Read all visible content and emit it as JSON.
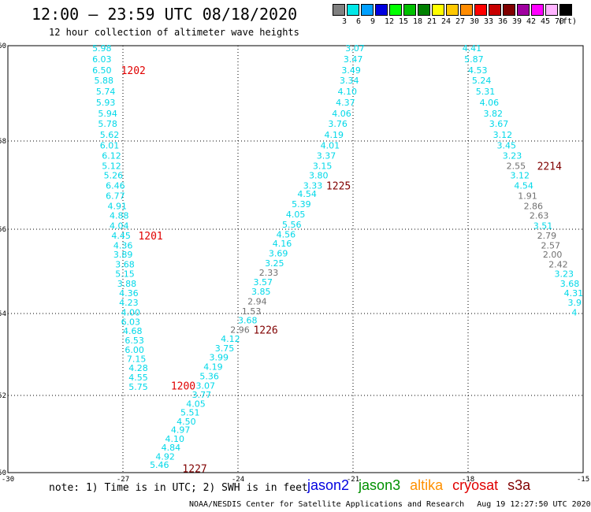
{
  "title": "12:00 — 23:59 UTC 08/18/2020",
  "subtitle": "12 hour collection of altimeter wave heights",
  "legend": {
    "unit": "(ft)",
    "bins": [
      {
        "label": "3",
        "color": "#808080"
      },
      {
        "label": "6",
        "color": "#00e8e8"
      },
      {
        "label": "9",
        "color": "#00a0ff"
      },
      {
        "label": "12",
        "color": "#0000e0"
      },
      {
        "label": "15",
        "color": "#00ff00"
      },
      {
        "label": "18",
        "color": "#00c000"
      },
      {
        "label": "21",
        "color": "#008000"
      },
      {
        "label": "24",
        "color": "#ffff00"
      },
      {
        "label": "27",
        "color": "#ffc800"
      },
      {
        "label": "30",
        "color": "#ff8c00"
      },
      {
        "label": "33",
        "color": "#ff0000"
      },
      {
        "label": "36",
        "color": "#c80000"
      },
      {
        "label": "39",
        "color": "#800000"
      },
      {
        "label": "42",
        "color": "#a000a0"
      },
      {
        "label": "45",
        "color": "#ff00ff"
      },
      {
        "label": "70",
        "color": "#ffb4ff"
      },
      {
        "label": "",
        "color": "#000000"
      }
    ]
  },
  "axes": {
    "lon_ticks": [
      "-30",
      "-27",
      "-24",
      "-21",
      "-18",
      "-15"
    ],
    "lat_ticks": [
      "50",
      "52",
      "54",
      "56",
      "58",
      "60"
    ]
  },
  "colors": {
    "cyan": "#00d8e8",
    "gray": "#707070",
    "red": "#e00000",
    "darkred": "#800000"
  },
  "tracks": [
    {
      "color": "cyan",
      "points": [
        {
          "lat": 59.95,
          "lon": -27.8,
          "v": "5.98"
        },
        {
          "lat": 59.72,
          "lon": -27.8,
          "v": "6.03"
        },
        {
          "lat": 59.49,
          "lon": -27.8,
          "v": "6.50"
        },
        {
          "lat": 59.27,
          "lon": -27.75,
          "v": "5.88"
        },
        {
          "lat": 59.04,
          "lon": -27.7,
          "v": "5.74"
        },
        {
          "lat": 58.81,
          "lon": -27.7,
          "v": "5.93"
        },
        {
          "lat": 58.58,
          "lon": -27.65,
          "v": "5.94"
        },
        {
          "lat": 58.36,
          "lon": -27.65,
          "v": "5.78"
        },
        {
          "lat": 58.13,
          "lon": -27.6,
          "v": "5.62"
        },
        {
          "lat": 57.9,
          "lon": -27.6,
          "v": "6.01"
        },
        {
          "lat": 57.67,
          "lon": -27.55,
          "v": "6.12"
        },
        {
          "lat": 57.44,
          "lon": -27.55,
          "v": "5.12"
        },
        {
          "lat": 57.22,
          "lon": -27.5,
          "v": "5.26"
        },
        {
          "lat": 56.99,
          "lon": -27.45,
          "v": "6.46"
        },
        {
          "lat": 56.76,
          "lon": -27.45,
          "v": "6.77"
        },
        {
          "lat": 56.53,
          "lon": -27.4,
          "v": "4.91"
        },
        {
          "lat": 56.31,
          "lon": -27.35,
          "v": "4.88"
        },
        {
          "lat": 56.08,
          "lon": -27.35,
          "v": "4.04"
        },
        {
          "lat": 55.85,
          "lon": -27.3,
          "v": "4.45"
        },
        {
          "lat": 55.62,
          "lon": -27.25,
          "v": "4.36"
        },
        {
          "lat": 55.4,
          "lon": -27.25,
          "v": "3.89"
        },
        {
          "lat": 55.17,
          "lon": -27.2,
          "v": "3.68"
        },
        {
          "lat": 54.94,
          "lon": -27.2,
          "v": "5.15"
        },
        {
          "lat": 54.71,
          "lon": -27.15,
          "v": "3.88"
        },
        {
          "lat": 54.49,
          "lon": -27.1,
          "v": "4.36"
        },
        {
          "lat": 54.26,
          "lon": -27.1,
          "v": "4.23"
        },
        {
          "lat": 54.03,
          "lon": -27.05,
          "v": "4.00"
        },
        {
          "lat": 53.8,
          "lon": -27.05,
          "v": "6.03"
        },
        {
          "lat": 53.58,
          "lon": -27.0,
          "v": "4.68"
        },
        {
          "lat": 53.35,
          "lon": -26.95,
          "v": "6.53"
        },
        {
          "lat": 53.12,
          "lon": -26.95,
          "v": "6.00"
        },
        {
          "lat": 52.89,
          "lon": -26.9,
          "v": "7.15"
        },
        {
          "lat": 52.67,
          "lon": -26.85,
          "v": "4.28"
        },
        {
          "lat": 52.44,
          "lon": -26.85,
          "v": "4.55"
        },
        {
          "lat": 52.21,
          "lon": -26.85,
          "v": "5.75"
        }
      ]
    },
    {
      "color": "cyan",
      "points": [
        {
          "lat": 59.95,
          "lon": -21.2,
          "v": "3.07"
        },
        {
          "lat": 59.72,
          "lon": -21.25,
          "v": "3.47"
        },
        {
          "lat": 59.49,
          "lon": -21.3,
          "v": "3.49"
        },
        {
          "lat": 59.27,
          "lon": -21.35,
          "v": "3.34"
        },
        {
          "lat": 59.04,
          "lon": -21.4,
          "v": "4.10"
        },
        {
          "lat": 58.81,
          "lon": -21.45,
          "v": "4.37"
        },
        {
          "lat": 58.58,
          "lon": -21.55,
          "v": "4.06"
        },
        {
          "lat": 58.36,
          "lon": -21.65,
          "v": "3.76"
        },
        {
          "lat": 58.13,
          "lon": -21.75,
          "v": "4.19"
        },
        {
          "lat": 57.9,
          "lon": -21.85,
          "v": "4.01"
        },
        {
          "lat": 57.67,
          "lon": -21.95,
          "v": "3.37"
        },
        {
          "lat": 57.44,
          "lon": -22.05,
          "v": "3.15"
        },
        {
          "lat": 57.22,
          "lon": -22.15,
          "v": "3.80"
        },
        {
          "lat": 56.99,
          "lon": -22.3,
          "v": "3.33"
        },
        {
          "lat": 56.8,
          "lon": -22.45,
          "v": "4.54"
        },
        {
          "lat": 56.57,
          "lon": -22.6,
          "v": "5.39"
        },
        {
          "lat": 56.34,
          "lon": -22.75,
          "v": "4.05"
        },
        {
          "lat": 56.11,
          "lon": -22.85,
          "v": "5.56"
        },
        {
          "lat": 55.88,
          "lon": -23.0,
          "v": "4.56"
        },
        {
          "lat": 55.66,
          "lon": -23.1,
          "v": "4.16"
        },
        {
          "lat": 55.43,
          "lon": -23.2,
          "v": "3.69"
        },
        {
          "lat": 55.2,
          "lon": -23.3,
          "v": "3.25"
        }
      ]
    },
    {
      "color": "gray",
      "points": [
        {
          "lat": 54.97,
          "lon": -23.45,
          "v": "2.33"
        }
      ]
    },
    {
      "color": "cyan",
      "points": [
        {
          "lat": 54.75,
          "lon": -23.6,
          "v": "3.57"
        },
        {
          "lat": 54.52,
          "lon": -23.65,
          "v": "3.85"
        }
      ]
    },
    {
      "color": "gray",
      "points": [
        {
          "lat": 54.29,
          "lon": -23.75,
          "v": "2.94"
        },
        {
          "lat": 54.06,
          "lon": -23.9,
          "v": "1.53"
        }
      ]
    },
    {
      "color": "cyan",
      "points": [
        {
          "lat": 53.84,
          "lon": -24.0,
          "v": "3.68"
        }
      ]
    },
    {
      "color": "gray",
      "points": [
        {
          "lat": 53.61,
          "lon": -24.2,
          "v": "2.96"
        }
      ]
    },
    {
      "color": "cyan",
      "points": [
        {
          "lat": 53.38,
          "lon": -24.45,
          "v": "4.12"
        },
        {
          "lat": 53.15,
          "lon": -24.6,
          "v": "3.75"
        },
        {
          "lat": 52.93,
          "lon": -24.75,
          "v": "3.99"
        },
        {
          "lat": 52.7,
          "lon": -24.9,
          "v": "4.19"
        },
        {
          "lat": 52.47,
          "lon": -25.0,
          "v": "5.36"
        },
        {
          "lat": 52.24,
          "lon": -25.1,
          "v": "3.07"
        },
        {
          "lat": 52.02,
          "lon": -25.2,
          "v": "3.77"
        },
        {
          "lat": 51.79,
          "lon": -25.35,
          "v": "4.05"
        },
        {
          "lat": 51.56,
          "lon": -25.5,
          "v": "5.51"
        },
        {
          "lat": 51.33,
          "lon": -25.6,
          "v": "4.50"
        },
        {
          "lat": 51.11,
          "lon": -25.75,
          "v": "4.97"
        },
        {
          "lat": 50.88,
          "lon": -25.9,
          "v": "4.10"
        },
        {
          "lat": 50.65,
          "lon": -26.0,
          "v": "4.84"
        },
        {
          "lat": 50.42,
          "lon": -26.15,
          "v": "4.92"
        },
        {
          "lat": 50.2,
          "lon": -26.3,
          "v": "5.46"
        }
      ]
    },
    {
      "color": "cyan",
      "points": [
        {
          "lat": 59.95,
          "lon": -18.15,
          "v": "4.41"
        },
        {
          "lat": 59.72,
          "lon": -18.1,
          "v": "5.87"
        },
        {
          "lat": 59.49,
          "lon": -18.0,
          "v": "4.53"
        },
        {
          "lat": 59.27,
          "lon": -17.9,
          "v": "5.24"
        },
        {
          "lat": 59.04,
          "lon": -17.8,
          "v": "5.31"
        },
        {
          "lat": 58.81,
          "lon": -17.7,
          "v": "4.06"
        },
        {
          "lat": 58.58,
          "lon": -17.6,
          "v": "3.82"
        },
        {
          "lat": 58.36,
          "lon": -17.45,
          "v": "3.67"
        },
        {
          "lat": 58.13,
          "lon": -17.35,
          "v": "3.12"
        },
        {
          "lat": 57.9,
          "lon": -17.25,
          "v": "3.45"
        },
        {
          "lat": 57.67,
          "lon": -17.1,
          "v": "3.23"
        }
      ]
    },
    {
      "color": "gray",
      "points": [
        {
          "lat": 57.44,
          "lon": -17.0,
          "v": "2.55"
        }
      ]
    },
    {
      "color": "cyan",
      "points": [
        {
          "lat": 57.22,
          "lon": -16.9,
          "v": "3.12"
        },
        {
          "lat": 56.99,
          "lon": -16.8,
          "v": "4.54"
        }
      ]
    },
    {
      "color": "gray",
      "points": [
        {
          "lat": 56.76,
          "lon": -16.7,
          "v": "1.91"
        },
        {
          "lat": 56.53,
          "lon": -16.55,
          "v": "2.86"
        },
        {
          "lat": 56.31,
          "lon": -16.4,
          "v": "2.63"
        }
      ]
    },
    {
      "color": "cyan",
      "points": [
        {
          "lat": 56.08,
          "lon": -16.3,
          "v": "3.51"
        }
      ]
    },
    {
      "color": "gray",
      "points": [
        {
          "lat": 55.85,
          "lon": -16.2,
          "v": "2.79"
        },
        {
          "lat": 55.62,
          "lon": -16.1,
          "v": "2.57"
        },
        {
          "lat": 55.4,
          "lon": -16.05,
          "v": "2.00"
        },
        {
          "lat": 55.17,
          "lon": -15.9,
          "v": "2.42"
        }
      ]
    },
    {
      "color": "cyan",
      "points": [
        {
          "lat": 54.94,
          "lon": -15.75,
          "v": "3.23"
        },
        {
          "lat": 54.71,
          "lon": -15.6,
          "v": "3.68"
        },
        {
          "lat": 54.49,
          "lon": -15.5,
          "v": "4.31"
        },
        {
          "lat": 54.26,
          "lon": -15.4,
          "v": "3.9"
        },
        {
          "lat": 54.03,
          "lon": -15.3,
          "v": "4"
        }
      ]
    }
  ],
  "pass_labels": [
    {
      "text": "1202",
      "lat": 59.49,
      "lon": -27.05,
      "color": "red"
    },
    {
      "text": "1201",
      "lat": 55.85,
      "lon": -26.6,
      "color": "red"
    },
    {
      "text": "1200",
      "lat": 52.24,
      "lon": -25.75,
      "color": "red"
    },
    {
      "text": "1227",
      "lat": 50.11,
      "lon": -25.45,
      "color": "darkred"
    },
    {
      "text": "1226",
      "lat": 53.61,
      "lon": -23.6,
      "color": "darkred"
    },
    {
      "text": "1225",
      "lat": 56.99,
      "lon": -21.7,
      "color": "darkred"
    },
    {
      "text": "2214",
      "lat": 57.44,
      "lon": -16.2,
      "color": "darkred"
    }
  ],
  "note": "note: 1) Time is in UTC; 2) SWH is in feet",
  "satellites": [
    {
      "name": "jason2",
      "color": "#0000e0"
    },
    {
      "name": "jason3",
      "color": "#009000"
    },
    {
      "name": "altika",
      "color": "#ff9000"
    },
    {
      "name": "cryosat",
      "color": "#e00000"
    },
    {
      "name": "s3a",
      "color": "#800000"
    }
  ],
  "footer": {
    "credit": "NOAA/NESDIS Center for Satellite Applications and Research",
    "timestamp": "Aug 19 12:27:50 UTC 2020"
  }
}
